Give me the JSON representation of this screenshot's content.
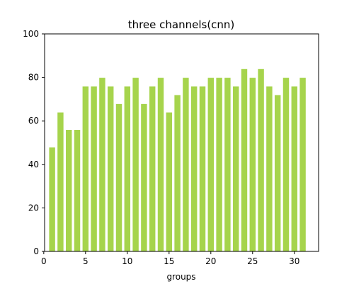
{
  "chart_data": {
    "type": "bar",
    "title": "three channels(cnn)",
    "xlabel": "groups",
    "ylabel": "",
    "x": [
      1,
      2,
      3,
      4,
      5,
      6,
      7,
      8,
      9,
      10,
      11,
      12,
      13,
      14,
      15,
      16,
      17,
      18,
      19,
      20,
      21,
      22,
      23,
      24,
      25,
      26,
      27,
      28,
      29,
      30,
      31
    ],
    "values": [
      48,
      64,
      56,
      56,
      76,
      76,
      80,
      76,
      68,
      76,
      80,
      68,
      76,
      80,
      64,
      72,
      80,
      76,
      76,
      80,
      80,
      80,
      76,
      84,
      80,
      84,
      76,
      72,
      80,
      76,
      80
    ],
    "xlim": [
      0.1,
      32.9
    ],
    "ylim": [
      0,
      100
    ],
    "xticks": [
      0,
      5,
      10,
      15,
      20,
      25,
      30
    ],
    "yticks": [
      0,
      20,
      40,
      60,
      80,
      100
    ],
    "bar_color": "#a6d44c",
    "bar_edge_color": "#ffffff",
    "grid": false,
    "legend": "none"
  }
}
